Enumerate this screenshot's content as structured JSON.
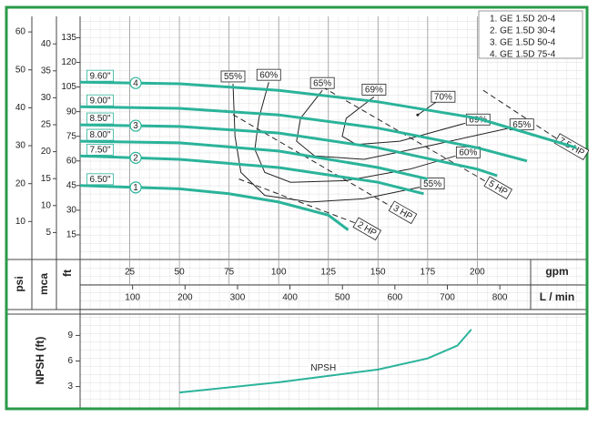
{
  "chart_data": [
    {
      "type": "line",
      "legend": [
        "1. GE 1.5D 20-4",
        "2. GE 1.5D 30-4",
        "3. GE 1.5D 50-4",
        "4. GE 1.5D 75-4"
      ],
      "x_label": "gpm",
      "xlim": [
        0,
        253
      ],
      "xticks": [
        25,
        50,
        75,
        100,
        125,
        150,
        175,
        200
      ],
      "x2_label": "L / min",
      "x2lim": [
        0,
        957.6
      ],
      "x2ticks": [
        100,
        200,
        300,
        400,
        500,
        600,
        700,
        800
      ],
      "y_label": "ft",
      "ylim": [
        0,
        148
      ],
      "yticks": [
        15,
        30,
        45,
        60,
        75,
        90,
        105,
        120,
        135
      ],
      "mca_label": "mca",
      "mca_lim": [
        0,
        45.1
      ],
      "mca_ticks": [
        5,
        10,
        15,
        20,
        25,
        30,
        35,
        40
      ],
      "psi_label": "psi",
      "psi_lim": [
        0,
        64.1
      ],
      "psi_ticks": [
        10,
        20,
        30,
        40,
        50,
        60
      ],
      "color": "#2bb39a",
      "series": [
        {
          "name": "9.60\"",
          "tag": "4",
          "x": [
            0,
            50,
            100,
            150,
            200,
            250
          ],
          "values": [
            108,
            107,
            103,
            96,
            86,
            68
          ]
        },
        {
          "name": "9.00\"",
          "x": [
            0,
            50,
            100,
            150,
            200,
            225
          ],
          "values": [
            93,
            92,
            88,
            80,
            68,
            60
          ]
        },
        {
          "name": "8.50\"",
          "tag": "3",
          "x": [
            0,
            50,
            100,
            150,
            200,
            210
          ],
          "values": [
            82,
            81,
            77,
            68,
            55,
            51
          ]
        },
        {
          "name": "8.00\"",
          "x": [
            0,
            50,
            100,
            150,
            175
          ],
          "values": [
            72,
            71,
            66,
            56,
            49
          ]
        },
        {
          "name": "7.50\"",
          "tag": "2",
          "x": [
            0,
            50,
            100,
            150,
            173
          ],
          "values": [
            63,
            61,
            56,
            47,
            40
          ]
        },
        {
          "name": "6.50\"",
          "tag": "1",
          "x": [
            0,
            50,
            75,
            100,
            125,
            135
          ],
          "values": [
            45,
            43,
            40,
            35,
            27,
            18
          ]
        }
      ],
      "efficiency": [
        {
          "label": "55%",
          "x": [
            77,
            78,
            81,
            93,
            116,
            143,
            171
          ],
          "values": [
            107,
            75,
            53,
            39,
            35,
            37,
            44
          ]
        },
        {
          "label": "60%",
          "x": [
            95,
            90,
            88,
            93,
            106,
            134,
            166,
            189
          ],
          "values": [
            108,
            86,
            67,
            53,
            47,
            48,
            55,
            63
          ]
        },
        {
          "label": "65%",
          "x": [
            122,
            111,
            109,
            118,
            143,
            175,
            216
          ],
          "values": [
            103,
            86,
            72,
            63,
            61,
            69,
            80
          ]
        },
        {
          "label": "69%",
          "x": [
            148,
            134,
            132,
            139,
            161,
            194
          ],
          "values": [
            99,
            86,
            75,
            70,
            72,
            83
          ]
        },
        {
          "label": "70%",
          "x": [
            170
          ],
          "values": [
            88
          ]
        }
      ],
      "power": [
        {
          "label": "2 HP",
          "x": [
            80,
            139
          ],
          "values": [
            49,
            22
          ]
        },
        {
          "label": "3 HP",
          "x": [
            73,
            157
          ],
          "values": [
            91,
            32
          ]
        },
        {
          "label": "5 HP",
          "x": [
            122,
            205
          ],
          "values": [
            105,
            47
          ]
        },
        {
          "label": "7.5 HP",
          "x": [
            203,
            242
          ],
          "values": [
            103,
            72
          ]
        }
      ]
    },
    {
      "type": "line",
      "y_label": "NPSH (ft)",
      "xlim": [
        0,
        253
      ],
      "xticks": [
        50,
        150
      ],
      "ylim": [
        0.5,
        11.5
      ],
      "yticks": [
        3,
        6,
        9
      ],
      "series": [
        {
          "name": "NPSH",
          "color": "#2bb39a",
          "x": [
            50,
            100,
            150,
            175,
            190,
            197
          ],
          "values": [
            2.3,
            3.5,
            5.0,
            6.3,
            7.8,
            9.7
          ]
        }
      ]
    }
  ]
}
